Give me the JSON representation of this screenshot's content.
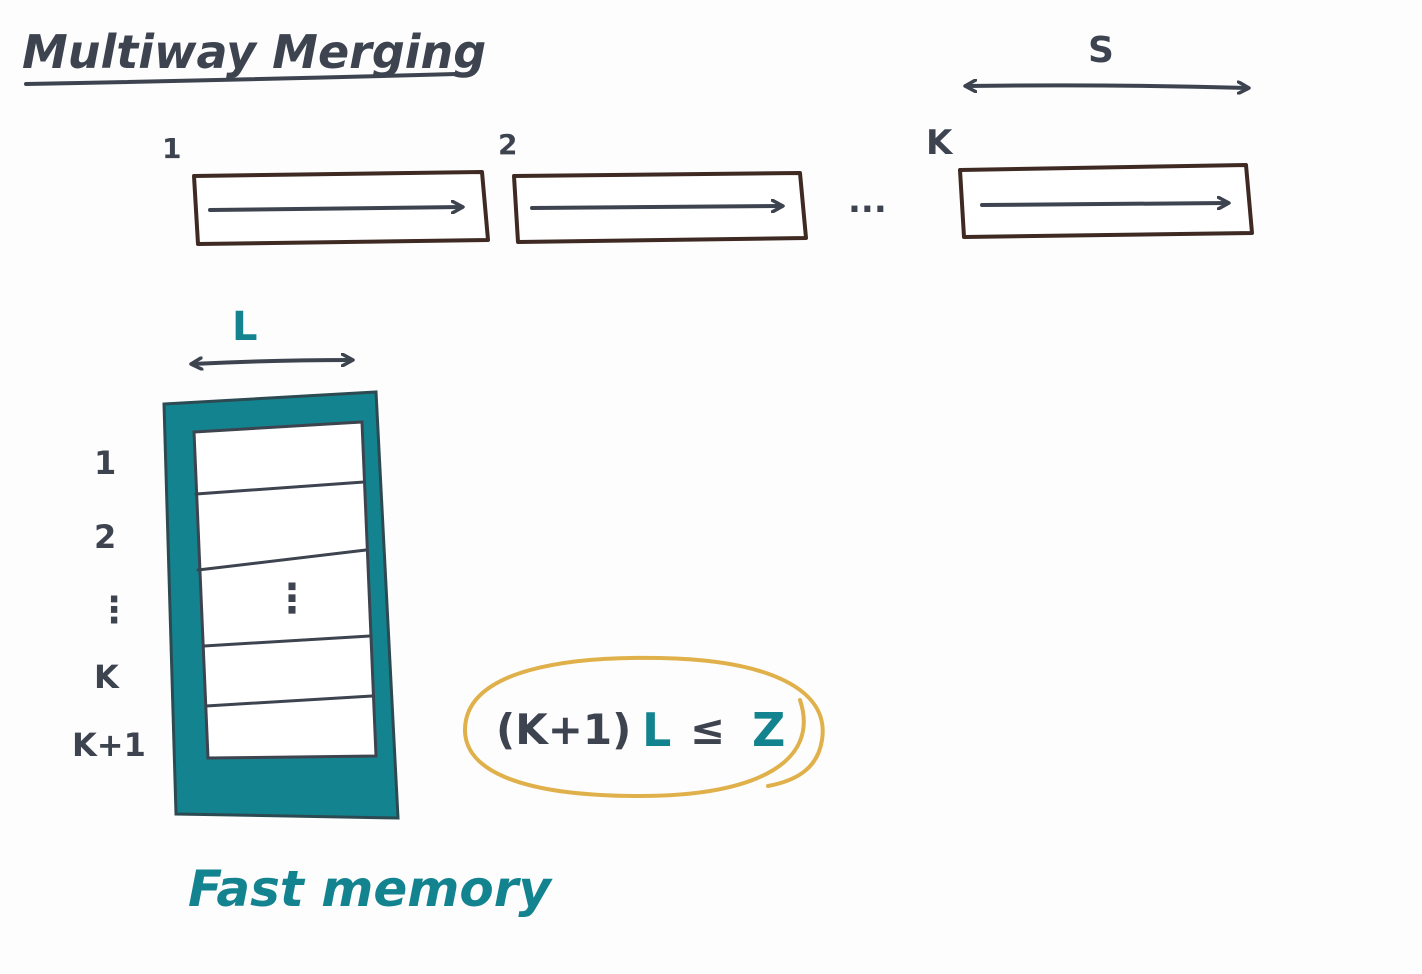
{
  "title": "Multiway Merging",
  "runs": {
    "labels": [
      "1",
      "2",
      "K"
    ],
    "ellipsis": "...",
    "span_label": "S"
  },
  "fast_memory": {
    "width_label": "L",
    "row_labels": [
      "1",
      "2",
      "⋮",
      "K",
      "K+1"
    ],
    "inner_ellipsis": "⋮",
    "caption": "Fast memory",
    "frame_color": "#13848f"
  },
  "constraint": {
    "prefix": "(K+1)",
    "L": "L",
    "op": "≤",
    "Z": "Z",
    "ring_color": "#e0b04a"
  },
  "colors": {
    "ink": "#3d4450",
    "box_outline": "#3e2a22",
    "teal": "#13848f"
  }
}
